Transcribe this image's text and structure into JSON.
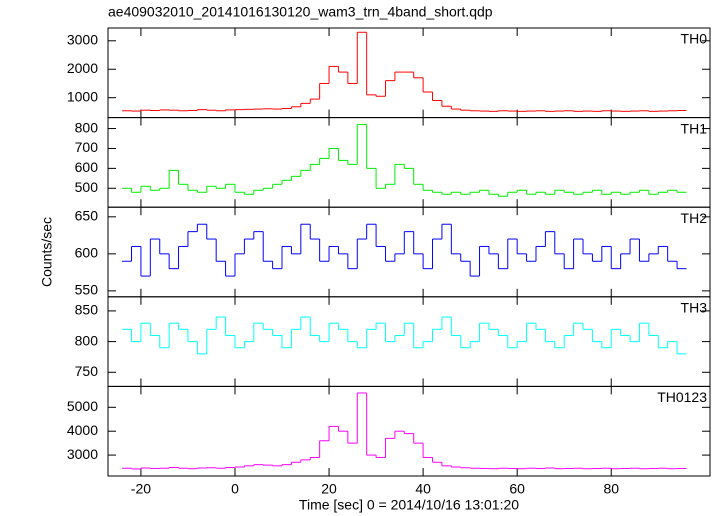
{
  "chart_data": {
    "type": "step",
    "title": "ae409032010_20141016130120_wam3_trn_4band_short.qdp",
    "ylabel": "Counts/sec",
    "xlabel": "Time [sec] 0 = 2014/10/16 13:01:20",
    "xlim": [
      -27,
      101
    ],
    "xticks": [
      -20,
      0,
      20,
      40,
      60,
      80
    ],
    "x": [
      -23,
      -21,
      -19,
      -17,
      -15,
      -13,
      -11,
      -9,
      -7,
      -5,
      -3,
      -1,
      1,
      3,
      5,
      7,
      9,
      11,
      13,
      15,
      17,
      19,
      21,
      23,
      25,
      27,
      29,
      31,
      33,
      35,
      37,
      39,
      41,
      43,
      45,
      47,
      49,
      51,
      53,
      55,
      57,
      59,
      61,
      63,
      65,
      67,
      69,
      71,
      73,
      75,
      77,
      79,
      81,
      83,
      85,
      87,
      89,
      91,
      93,
      95
    ],
    "panels": [
      {
        "label": "TH0",
        "color": "#ff0000",
        "ylim": [
          300,
          3450
        ],
        "yticks": [
          1000,
          2000,
          3000
        ],
        "values": [
          540,
          530,
          560,
          550,
          570,
          560,
          540,
          550,
          580,
          560,
          540,
          570,
          580,
          590,
          600,
          610,
          600,
          620,
          680,
          800,
          950,
          1500,
          2100,
          1900,
          1500,
          3300,
          1100,
          1050,
          1600,
          1900,
          1900,
          1700,
          1200,
          900,
          700,
          600,
          560,
          540,
          530,
          520,
          540,
          530,
          520,
          530,
          540,
          520,
          530,
          540,
          520,
          530,
          520,
          540,
          530,
          520,
          530,
          540,
          520,
          530,
          540,
          550
        ]
      },
      {
        "label": "TH1",
        "color": "#00ee00",
        "ylim": [
          405,
          855
        ],
        "yticks": [
          500,
          600,
          700,
          800
        ],
        "values": [
          500,
          480,
          510,
          490,
          500,
          590,
          520,
          490,
          480,
          510,
          500,
          520,
          480,
          470,
          490,
          500,
          520,
          540,
          560,
          590,
          620,
          650,
          700,
          640,
          620,
          820,
          600,
          500,
          520,
          620,
          600,
          520,
          490,
          480,
          470,
          480,
          470,
          480,
          490,
          470,
          460,
          480,
          490,
          470,
          480,
          470,
          490,
          480,
          470,
          480,
          490,
          470,
          480,
          470,
          480,
          490,
          470,
          480,
          490,
          480
        ]
      },
      {
        "label": "TH2",
        "color": "#0000ff",
        "ylim": [
          542,
          663
        ],
        "yticks": [
          550,
          600,
          650
        ],
        "values": [
          590,
          610,
          570,
          620,
          600,
          580,
          610,
          630,
          640,
          620,
          590,
          570,
          600,
          620,
          630,
          590,
          580,
          610,
          600,
          640,
          620,
          590,
          610,
          600,
          580,
          620,
          640,
          610,
          590,
          600,
          630,
          600,
          580,
          620,
          640,
          600,
          590,
          570,
          610,
          600,
          580,
          620,
          600,
          590,
          610,
          630,
          600,
          580,
          620,
          600,
          590,
          610,
          580,
          600,
          620,
          590,
          600,
          610,
          590,
          580
        ]
      },
      {
        "label": "TH3",
        "color": "#00ffff",
        "ylim": [
          727,
          873
        ],
        "yticks": [
          750,
          800,
          850
        ],
        "values": [
          820,
          800,
          830,
          810,
          790,
          830,
          820,
          800,
          780,
          820,
          840,
          810,
          790,
          800,
          830,
          820,
          810,
          790,
          820,
          840,
          810,
          800,
          830,
          820,
          800,
          790,
          820,
          830,
          800,
          810,
          830,
          790,
          800,
          820,
          840,
          810,
          790,
          800,
          830,
          820,
          810,
          790,
          800,
          830,
          820,
          800,
          790,
          810,
          830,
          820,
          800,
          790,
          820,
          810,
          800,
          830,
          810,
          790,
          800,
          780
        ]
      },
      {
        "label": "TH0123",
        "color": "#ff00ff",
        "ylim": [
          2125,
          5875
        ],
        "yticks": [
          3000,
          4000,
          5000
        ],
        "values": [
          2450,
          2420,
          2460,
          2440,
          2450,
          2480,
          2450,
          2430,
          2460,
          2470,
          2450,
          2480,
          2500,
          2550,
          2600,
          2580,
          2550,
          2600,
          2700,
          2800,
          2900,
          3600,
          4200,
          4000,
          3500,
          5600,
          3000,
          2900,
          3700,
          4000,
          3900,
          3500,
          2900,
          2700,
          2550,
          2500,
          2470,
          2450,
          2440,
          2430,
          2450,
          2440,
          2430,
          2450,
          2440,
          2460,
          2430,
          2440,
          2450,
          2430,
          2440,
          2450,
          2430,
          2440,
          2450,
          2430,
          2440,
          2450,
          2430,
          2440
        ]
      }
    ]
  }
}
